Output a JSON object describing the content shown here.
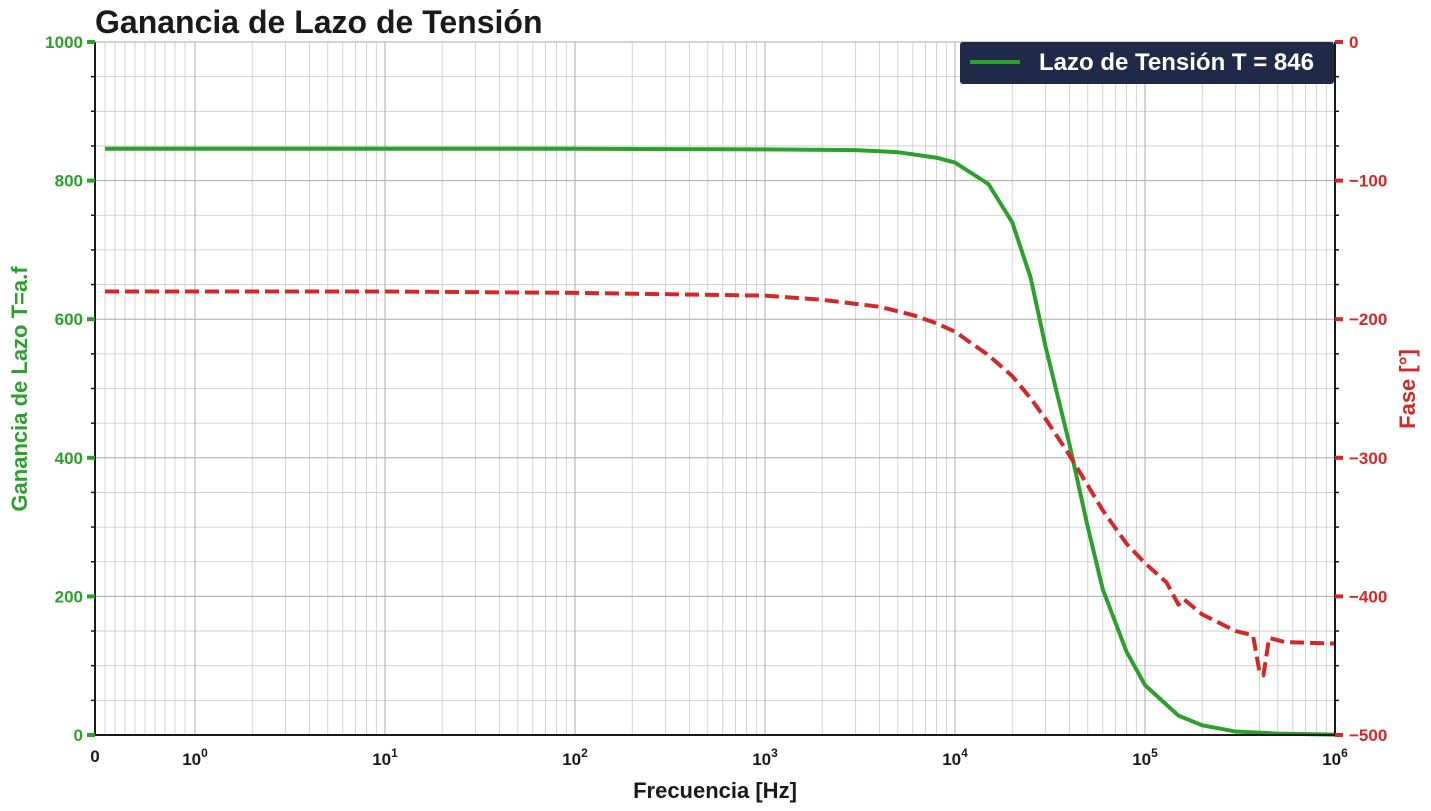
{
  "chart_data": {
    "type": "line",
    "title": "Ganancia de Lazo de Tensión",
    "xlabel": "Frecuencia [Hz]",
    "ylabel_left": "Ganancia de Lazo T=a.f",
    "ylabel_right": "Fase [°]",
    "x_scale": "symlog",
    "x_tick_labels": [
      {
        "base": "0",
        "exp": ""
      },
      {
        "base": "10",
        "exp": "0"
      },
      {
        "base": "10",
        "exp": "1"
      },
      {
        "base": "10",
        "exp": "2"
      },
      {
        "base": "10",
        "exp": "3"
      },
      {
        "base": "10",
        "exp": "4"
      },
      {
        "base": "10",
        "exp": "5"
      },
      {
        "base": "10",
        "exp": "6"
      }
    ],
    "x_ticks": [
      0,
      1,
      10,
      100,
      1000,
      10000,
      100000,
      1000000
    ],
    "xlim": [
      0,
      1000000
    ],
    "ylim_left": [
      0,
      1000
    ],
    "ylim_right": [
      -500,
      0
    ],
    "y_ticks_left": [
      0,
      200,
      400,
      600,
      800,
      1000
    ],
    "y_tick_labels_left": [
      "0",
      "200",
      "400",
      "600",
      "800",
      "1000"
    ],
    "y_ticks_right": [
      0,
      -100,
      -200,
      -300,
      -400,
      -500
    ],
    "y_tick_labels_right": [
      "0",
      "−100",
      "−200",
      "−300",
      "−400",
      "−500"
    ],
    "grid": true,
    "legend": {
      "position": "top-right",
      "entries": [
        "Lazo de Tensión T = 846"
      ]
    },
    "colors": {
      "gain": "#2ca02c",
      "phase": "#d62728",
      "legend_bg": "#1f2a48"
    },
    "series": [
      {
        "name": "Lazo de Tensión T = 846",
        "axis": "left",
        "style": "solid",
        "x": [
          0.1,
          1,
          10,
          100,
          1000,
          3000,
          5000,
          8000,
          10000,
          15000,
          20000,
          25000,
          30000,
          40000,
          50000,
          60000,
          80000,
          100000,
          150000,
          200000,
          300000,
          500000,
          1000000
        ],
        "values": [
          846,
          846,
          846,
          846,
          845,
          844,
          841,
          833,
          826,
          795,
          740,
          660,
          560,
          420,
          300,
          210,
          120,
          72,
          28,
          14,
          5,
          2,
          0.5
        ]
      },
      {
        "name": "Fase",
        "axis": "right",
        "style": "dashed",
        "x": [
          0.1,
          1,
          10,
          100,
          1000,
          2000,
          4000,
          6000,
          8000,
          10000,
          15000,
          20000,
          25000,
          30000,
          40000,
          50000,
          60000,
          80000,
          100000,
          130000,
          150000,
          160000,
          200000,
          300000,
          370000,
          400000,
          420000,
          450000,
          550000,
          1000000
        ],
        "values": [
          -180,
          -180,
          -180,
          -181,
          -183,
          -186,
          -191,
          -197,
          -203,
          -209,
          -226,
          -241,
          -257,
          -272,
          -298,
          -320,
          -338,
          -362,
          -376,
          -390,
          -406,
          -402,
          -413,
          -425,
          -428,
          -454,
          -457,
          -430,
          -433,
          -434
        ]
      }
    ]
  }
}
